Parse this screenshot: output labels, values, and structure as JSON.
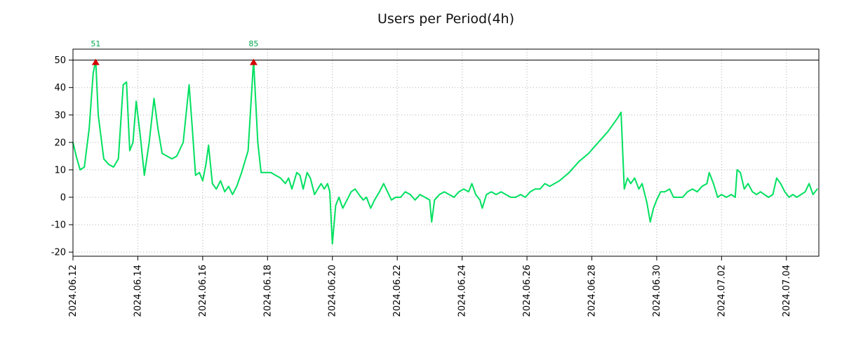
{
  "chart_data": {
    "type": "line",
    "title": "Users per Period(4h)",
    "series_name": "Users",
    "line_color": "#00e060",
    "marker_color": "#d40000",
    "annotation_color": "#00a84d",
    "grid_color": "#b0b0b0",
    "axis_color": "#000000",
    "background_color": "#ffffff",
    "grid": true,
    "legend_position": "none",
    "cap_line": {
      "y": 50,
      "color": "#000000"
    },
    "overflow_markers": [
      {
        "day": 0.7,
        "actual_value": 51,
        "label": "51"
      },
      {
        "day": 5.57,
        "actual_value": 85,
        "label": "85"
      }
    ],
    "ylim": [
      -21.5,
      54
    ],
    "yticks": [
      -20,
      -10,
      0,
      10,
      20,
      30,
      40,
      50
    ],
    "x_days_range": [
      0,
      23
    ],
    "xticks": [
      {
        "day": 0,
        "label": "2024.06.12"
      },
      {
        "day": 2,
        "label": "2024.06.14"
      },
      {
        "day": 4,
        "label": "2024.06.16"
      },
      {
        "day": 6,
        "label": "2024.06.18"
      },
      {
        "day": 8,
        "label": "2024.06.20"
      },
      {
        "day": 10,
        "label": "2024.06.22"
      },
      {
        "day": 12,
        "label": "2024.06.24"
      },
      {
        "day": 14,
        "label": "2024.06.26"
      },
      {
        "day": 16,
        "label": "2024.06.28"
      },
      {
        "day": 18,
        "label": "2024.06.30"
      },
      {
        "day": 20,
        "label": "2024.07.02"
      },
      {
        "day": 22,
        "label": "2024.07.04"
      }
    ],
    "points": [
      [
        0,
        20
      ],
      [
        0.1,
        15
      ],
      [
        0.22,
        10
      ],
      [
        0.35,
        11
      ],
      [
        0.5,
        25
      ],
      [
        0.62,
        45
      ],
      [
        0.7,
        50
      ],
      [
        0.78,
        30
      ],
      [
        0.95,
        14
      ],
      [
        1.1,
        12
      ],
      [
        1.25,
        11
      ],
      [
        1.4,
        14
      ],
      [
        1.55,
        41
      ],
      [
        1.65,
        42
      ],
      [
        1.75,
        17
      ],
      [
        1.85,
        20
      ],
      [
        1.95,
        35
      ],
      [
        2.08,
        22
      ],
      [
        2.2,
        8
      ],
      [
        2.35,
        20
      ],
      [
        2.5,
        36
      ],
      [
        2.62,
        25
      ],
      [
        2.75,
        16
      ],
      [
        2.9,
        15
      ],
      [
        3.05,
        14
      ],
      [
        3.2,
        15
      ],
      [
        3.4,
        20
      ],
      [
        3.58,
        41
      ],
      [
        3.68,
        25
      ],
      [
        3.78,
        8
      ],
      [
        3.9,
        9
      ],
      [
        4,
        6
      ],
      [
        4.1,
        12
      ],
      [
        4.18,
        19
      ],
      [
        4.3,
        5
      ],
      [
        4.42,
        3
      ],
      [
        4.55,
        6
      ],
      [
        4.68,
        2
      ],
      [
        4.8,
        4
      ],
      [
        4.92,
        1
      ],
      [
        5.05,
        4
      ],
      [
        5.2,
        9
      ],
      [
        5.4,
        17
      ],
      [
        5.57,
        50
      ],
      [
        5.7,
        20
      ],
      [
        5.8,
        9
      ],
      [
        5.95,
        9
      ],
      [
        6.1,
        9
      ],
      [
        6.25,
        8
      ],
      [
        6.4,
        7
      ],
      [
        6.55,
        5
      ],
      [
        6.65,
        7
      ],
      [
        6.75,
        3
      ],
      [
        6.9,
        9
      ],
      [
        7,
        8
      ],
      [
        7.1,
        3
      ],
      [
        7.22,
        9
      ],
      [
        7.32,
        7
      ],
      [
        7.45,
        1
      ],
      [
        7.55,
        3
      ],
      [
        7.65,
        5
      ],
      [
        7.75,
        3
      ],
      [
        7.85,
        5
      ],
      [
        7.92,
        2
      ],
      [
        8,
        -17
      ],
      [
        8.1,
        -3
      ],
      [
        8.2,
        0
      ],
      [
        8.32,
        -4
      ],
      [
        8.45,
        -1
      ],
      [
        8.58,
        2
      ],
      [
        8.7,
        3
      ],
      [
        8.82,
        1
      ],
      [
        8.95,
        -1
      ],
      [
        9.05,
        0
      ],
      [
        9.18,
        -4
      ],
      [
        9.3,
        -1
      ],
      [
        9.45,
        2
      ],
      [
        9.58,
        5
      ],
      [
        9.7,
        2
      ],
      [
        9.82,
        -1
      ],
      [
        9.95,
        0
      ],
      [
        10.1,
        0
      ],
      [
        10.25,
        2
      ],
      [
        10.4,
        1
      ],
      [
        10.55,
        -1
      ],
      [
        10.7,
        1
      ],
      [
        10.85,
        0
      ],
      [
        11,
        -1
      ],
      [
        11.06,
        -9
      ],
      [
        11.15,
        -1
      ],
      [
        11.3,
        1
      ],
      [
        11.45,
        2
      ],
      [
        11.6,
        1
      ],
      [
        11.75,
        0
      ],
      [
        11.9,
        2
      ],
      [
        12.05,
        3
      ],
      [
        12.2,
        2
      ],
      [
        12.3,
        5
      ],
      [
        12.42,
        1
      ],
      [
        12.55,
        -1
      ],
      [
        12.62,
        -4
      ],
      [
        12.75,
        1
      ],
      [
        12.9,
        2
      ],
      [
        13.05,
        1
      ],
      [
        13.2,
        2
      ],
      [
        13.35,
        1
      ],
      [
        13.5,
        0
      ],
      [
        13.65,
        0
      ],
      [
        13.8,
        1
      ],
      [
        13.95,
        0
      ],
      [
        14.1,
        2
      ],
      [
        14.25,
        3
      ],
      [
        14.4,
        3
      ],
      [
        14.55,
        5
      ],
      [
        14.7,
        4
      ],
      [
        14.85,
        5
      ],
      [
        15,
        6
      ],
      [
        15.3,
        9
      ],
      [
        15.6,
        13
      ],
      [
        15.9,
        16
      ],
      [
        16.2,
        20
      ],
      [
        16.5,
        24
      ],
      [
        16.8,
        29
      ],
      [
        16.9,
        31
      ],
      [
        17,
        3
      ],
      [
        17.1,
        7
      ],
      [
        17.2,
        5
      ],
      [
        17.32,
        7
      ],
      [
        17.45,
        3
      ],
      [
        17.55,
        5
      ],
      [
        17.7,
        -2
      ],
      [
        17.8,
        -9
      ],
      [
        17.9,
        -4
      ],
      [
        18,
        -1
      ],
      [
        18.12,
        2
      ],
      [
        18.25,
        2
      ],
      [
        18.4,
        3
      ],
      [
        18.52,
        0
      ],
      [
        18.65,
        0
      ],
      [
        18.8,
        0
      ],
      [
        18.95,
        2
      ],
      [
        19.1,
        3
      ],
      [
        19.25,
        2
      ],
      [
        19.4,
        4
      ],
      [
        19.55,
        5
      ],
      [
        19.62,
        9
      ],
      [
        19.75,
        5
      ],
      [
        19.88,
        0
      ],
      [
        20,
        1
      ],
      [
        20.15,
        0
      ],
      [
        20.3,
        1
      ],
      [
        20.42,
        0
      ],
      [
        20.48,
        10
      ],
      [
        20.58,
        9
      ],
      [
        20.7,
        3
      ],
      [
        20.82,
        5
      ],
      [
        20.95,
        2
      ],
      [
        21.08,
        1
      ],
      [
        21.2,
        2
      ],
      [
        21.32,
        1
      ],
      [
        21.45,
        0
      ],
      [
        21.58,
        1
      ],
      [
        21.7,
        7
      ],
      [
        21.82,
        5
      ],
      [
        21.95,
        2
      ],
      [
        22.08,
        0
      ],
      [
        22.2,
        1
      ],
      [
        22.32,
        0
      ],
      [
        22.45,
        1
      ],
      [
        22.58,
        2
      ],
      [
        22.7,
        5
      ],
      [
        22.82,
        1
      ],
      [
        22.95,
        3
      ]
    ]
  }
}
